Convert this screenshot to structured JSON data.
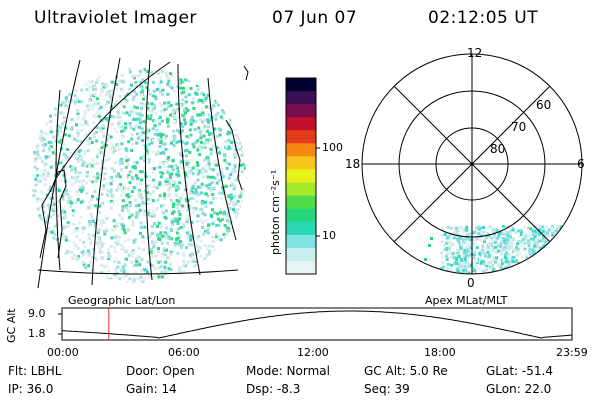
{
  "header": {
    "instrument": "Ultraviolet Imager",
    "date": "07 Jun 07",
    "time": "02:12:05 UT"
  },
  "colorbar": {
    "unit_label": "photon cm⁻²s⁻¹",
    "ticks": [
      "100",
      "10"
    ],
    "colors": [
      "#000030",
      "#3a0f54",
      "#7a0d4f",
      "#c0102a",
      "#e33a1a",
      "#f48a10",
      "#f6c51a",
      "#e7f21a",
      "#a4ea2b",
      "#4fdc4a",
      "#26d67c",
      "#2ad8b3",
      "#7ee4df",
      "#c8eeee",
      "#e8f4f4"
    ]
  },
  "left_panel": {
    "caption": "Geographic Lat/Lon"
  },
  "right_panel": {
    "caption": "Apex MLat/MLT",
    "mlt_labels": {
      "top": "12",
      "left": "18",
      "right": "6",
      "bottom": "0"
    },
    "lat_labels": [
      "60",
      "70",
      "80"
    ]
  },
  "timeline": {
    "ylabel": "GC Alt",
    "y_ticks": [
      "9.0",
      "1.8"
    ],
    "x_ticks": [
      "00:00",
      "06:00",
      "12:00",
      "18:00",
      "23:59"
    ],
    "marker_time": "02:12",
    "marker_color": "#e03030"
  },
  "info": {
    "flt": "Flt: LBHL",
    "ip": "IP: 36.0",
    "door": "Door: Open",
    "gain": "Gain: 14",
    "mode": "Mode: Normal",
    "dsp": "Dsp:   -8.3",
    "gcalt": "GC Alt: 5.0 Re",
    "seq": "Seq: 39",
    "glat": "GLat:  -51.4",
    "glon": "GLon:   22.0"
  }
}
